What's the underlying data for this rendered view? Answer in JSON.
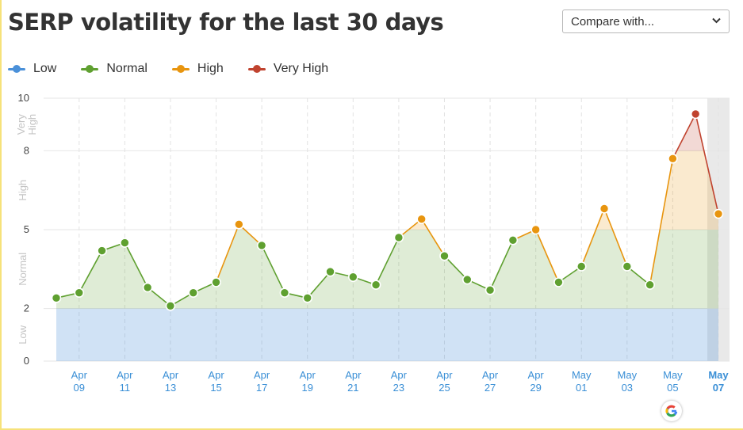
{
  "header": {
    "title": "SERP volatility for the last 30 days",
    "compare_label": "Compare with..."
  },
  "legend": [
    {
      "label": "Low",
      "color": "#4a90d9"
    },
    {
      "label": "Normal",
      "color": "#5fa030"
    },
    {
      "label": "High",
      "color": "#e8950f"
    },
    {
      "label": "Very High",
      "color": "#c0432f"
    }
  ],
  "icons": {
    "compare_chevron": "chevron-down-icon",
    "google_badge": "google-icon"
  },
  "chart_data": {
    "type": "line",
    "y_ticks": [
      0,
      2,
      5,
      8,
      10
    ],
    "ylim": [
      0,
      10
    ],
    "bands": [
      {
        "label": "Low",
        "from": 0,
        "to": 2,
        "color": "#4a90d9"
      },
      {
        "label": "Normal",
        "from": 2,
        "to": 5,
        "color": "#5fa030"
      },
      {
        "label": "High",
        "from": 5,
        "to": 8,
        "color": "#e8950f"
      },
      {
        "label": "Very High",
        "from": 8,
        "to": 10,
        "color": "#c0432f"
      }
    ],
    "band_labels": [
      "Low",
      "Normal",
      "High",
      "Very High"
    ],
    "x_tick_labels": [
      [
        "Apr",
        "09"
      ],
      [
        "Apr",
        "11"
      ],
      [
        "Apr",
        "13"
      ],
      [
        "Apr",
        "15"
      ],
      [
        "Apr",
        "17"
      ],
      [
        "Apr",
        "19"
      ],
      [
        "Apr",
        "21"
      ],
      [
        "Apr",
        "23"
      ],
      [
        "Apr",
        "25"
      ],
      [
        "Apr",
        "27"
      ],
      [
        "Apr",
        "29"
      ],
      [
        "May",
        "01"
      ],
      [
        "May",
        "03"
      ],
      [
        "May",
        "05"
      ],
      [
        "May",
        "07"
      ]
    ],
    "x": [
      "Apr 08",
      "Apr 09",
      "Apr 10",
      "Apr 11",
      "Apr 12",
      "Apr 13",
      "Apr 14",
      "Apr 15",
      "Apr 16",
      "Apr 17",
      "Apr 18",
      "Apr 19",
      "Apr 20",
      "Apr 21",
      "Apr 22",
      "Apr 23",
      "Apr 24",
      "Apr 25",
      "Apr 26",
      "Apr 27",
      "Apr 28",
      "Apr 29",
      "Apr 30",
      "May 01",
      "May 02",
      "May 03",
      "May 04",
      "May 05",
      "May 06",
      "May 07"
    ],
    "values": [
      2.4,
      2.6,
      4.2,
      4.5,
      2.8,
      2.1,
      2.6,
      3.0,
      5.2,
      4.4,
      2.6,
      2.4,
      3.4,
      3.2,
      2.9,
      4.7,
      5.4,
      4.0,
      3.1,
      2.7,
      4.6,
      5.0,
      3.0,
      3.6,
      5.8,
      3.6,
      2.9,
      7.7,
      9.4,
      5.6
    ],
    "levels": [
      "Normal",
      "Normal",
      "Normal",
      "Normal",
      "Normal",
      "Normal",
      "Normal",
      "Normal",
      "High",
      "Normal",
      "Normal",
      "Normal",
      "Normal",
      "Normal",
      "Normal",
      "Normal",
      "High",
      "Normal",
      "Normal",
      "Normal",
      "Normal",
      "High",
      "Normal",
      "Normal",
      "High",
      "Normal",
      "Normal",
      "High",
      "Very High",
      "High"
    ],
    "grid": true,
    "legend_position": "top-left",
    "marker_annotation": {
      "x": "May 05",
      "icon": "google-icon"
    }
  }
}
